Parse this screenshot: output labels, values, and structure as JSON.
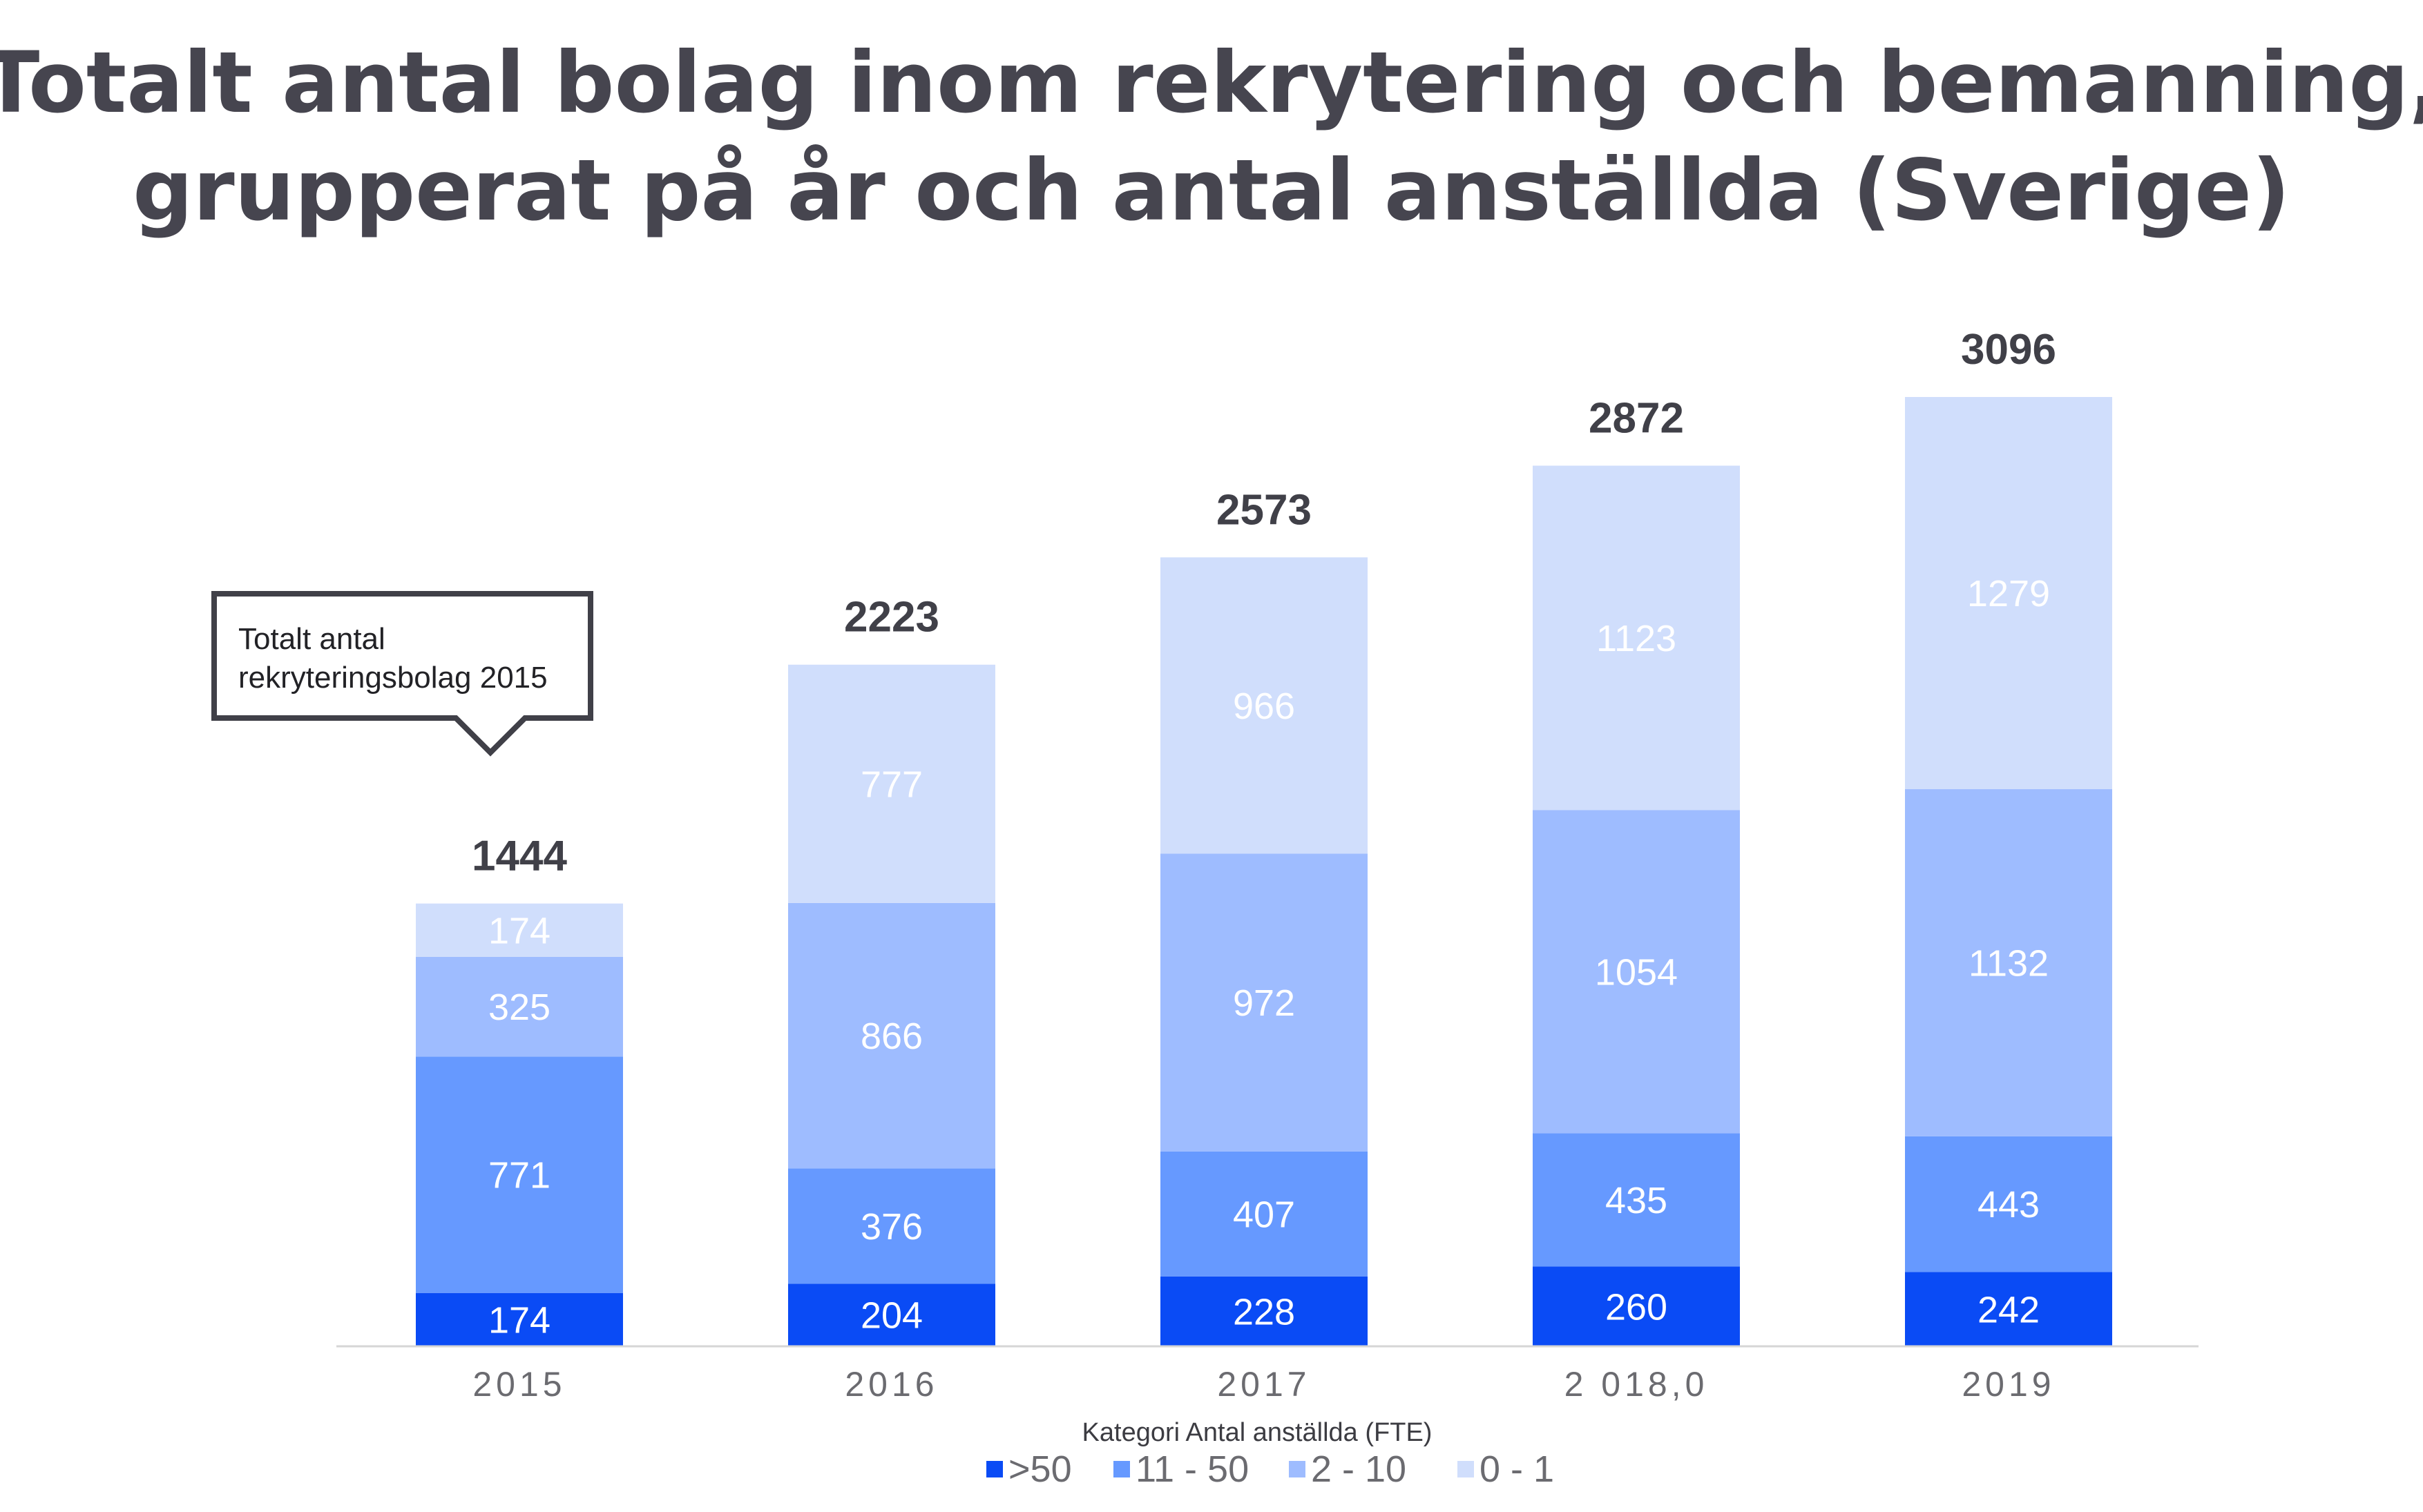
{
  "chart_data": {
    "type": "bar",
    "stacked": true,
    "title": "Totalt antal bolag inom rekrytering och bemanning, grupperat på år och antal anställda (Sverige)",
    "xlabel": "Kategori Antal anställda (FTE)",
    "categories": [
      "2015",
      "2016",
      "2017",
      "2 018,0",
      "2019"
    ],
    "series": [
      {
        "name": ">50",
        "color": "#0a4bf5",
        "values": [
          174,
          204,
          228,
          260,
          242
        ]
      },
      {
        "name": "11 - 50",
        "color": "#6699ff",
        "values": [
          771,
          376,
          407,
          435,
          443
        ]
      },
      {
        "name": "2 - 10",
        "color": "#9ebcff",
        "values": [
          325,
          866,
          972,
          1054,
          1132
        ]
      },
      {
        "name": "0 - 1",
        "color": "#d0defc",
        "values": [
          174,
          777,
          966,
          1123,
          1279
        ]
      }
    ],
    "totals": [
      1444,
      2223,
      2573,
      2872,
      3096
    ],
    "ylim": [
      0,
      3096
    ],
    "grid": false,
    "legend_position": "bottom",
    "annotation": {
      "category_index": 0,
      "lines": [
        "Totalt antal",
        "rekryteringsbolag 2015"
      ]
    }
  }
}
